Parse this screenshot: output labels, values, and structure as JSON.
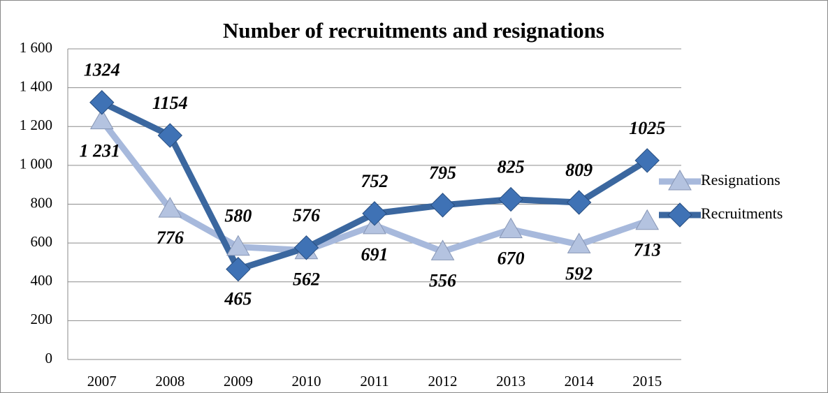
{
  "chart_data": {
    "type": "line",
    "title": "Number of recruitments and resignations",
    "categories": [
      "2007",
      "2008",
      "2009",
      "2010",
      "2011",
      "2012",
      "2013",
      "2014",
      "2015"
    ],
    "series": [
      {
        "name": "Resignations",
        "color": "#a7b9dc",
        "marker": "triangle",
        "values": [
          1231,
          776,
          580,
          562,
          691,
          556,
          670,
          592,
          713
        ],
        "value_labels": [
          "1 231",
          "776",
          "580",
          "562",
          "691",
          "556",
          "670",
          "592",
          "713"
        ]
      },
      {
        "name": "Recruitments",
        "color": "#3b679f",
        "marker": "diamond",
        "values": [
          1324,
          1154,
          465,
          576,
          752,
          795,
          825,
          809,
          1025
        ],
        "value_labels": [
          "1324",
          "1154",
          "465",
          "576",
          "752",
          "795",
          "825",
          "809",
          "1025"
        ]
      }
    ],
    "ylim": [
      0,
      1600
    ],
    "yticks": [
      0,
      200,
      400,
      600,
      800,
      {
        "value": 1000,
        "label": "1 000"
      },
      {
        "value": 1200,
        "label": "1 200"
      },
      {
        "value": 1400,
        "label": "1 400"
      },
      {
        "value": 1600,
        "label": "1 600"
      }
    ],
    "grid": true,
    "legend": "right"
  }
}
